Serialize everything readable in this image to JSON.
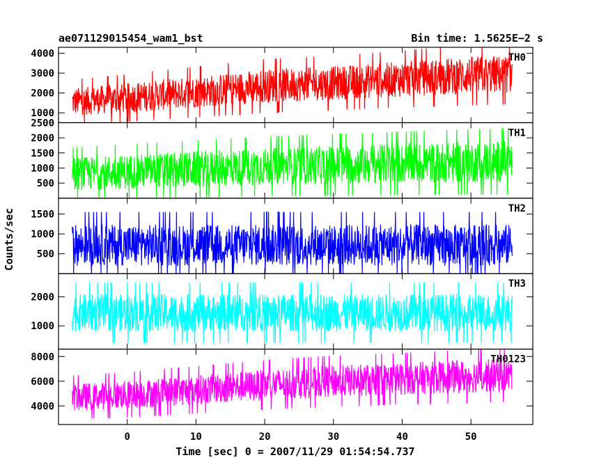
{
  "chart_data": {
    "type": "line",
    "title": "ae071129015454_wam1_bst",
    "subtitle": "Bin time: 1.5625E−2 s",
    "xlabel": "Time [sec] 0 = 2007/11/29 01:54:54.737",
    "ylabel": "Counts/sec",
    "xlim": [
      -10,
      59
    ],
    "x_ticks": [
      0,
      10,
      20,
      30,
      40,
      50
    ],
    "x_tick_labels": [
      "0",
      "10",
      "20",
      "30",
      "40",
      "50"
    ],
    "series_x_range": [
      -8,
      56
    ],
    "grid": false,
    "panels": [
      {
        "name": "TH0",
        "color": "#ff0000",
        "ylim": [
          500,
          4300
        ],
        "y_ticks": [
          1000,
          2000,
          3000,
          4000
        ],
        "y_tick_labels": [
          "1000",
          "2000",
          "3000",
          "4000"
        ],
        "trend_x": [
          -8,
          0,
          10,
          20,
          30,
          40,
          50,
          56
        ],
        "trend_mean": [
          1550,
          1750,
          2050,
          2350,
          2500,
          2700,
          2900,
          2950
        ],
        "trend_spread": [
          700,
          750,
          800,
          850,
          850,
          900,
          950,
          950
        ]
      },
      {
        "name": "TH1",
        "color": "#00ff00",
        "ylim": [
          0,
          2500
        ],
        "y_ticks": [
          500,
          1000,
          1500,
          2000,
          2500
        ],
        "y_tick_labels": [
          "500",
          "1000",
          "1500",
          "2000",
          "2500"
        ],
        "trend_x": [
          -8,
          0,
          10,
          20,
          30,
          40,
          50,
          56
        ],
        "trend_mean": [
          800,
          880,
          960,
          1050,
          1100,
          1150,
          1200,
          1220
        ],
        "trend_spread": [
          550,
          570,
          600,
          620,
          640,
          660,
          680,
          690
        ]
      },
      {
        "name": "TH2",
        "color": "#0000ff",
        "ylim": [
          0,
          1900
        ],
        "y_ticks": [
          500,
          1000,
          1500
        ],
        "y_tick_labels": [
          "500",
          "1000",
          "1500"
        ],
        "trend_x": [
          -8,
          0,
          10,
          20,
          30,
          40,
          50,
          56
        ],
        "trend_mean": [
          720,
          720,
          720,
          720,
          720,
          720,
          720,
          720
        ],
        "trend_spread": [
          520,
          520,
          520,
          520,
          520,
          520,
          520,
          520
        ]
      },
      {
        "name": "TH3",
        "color": "#00ffff",
        "ylim": [
          200,
          2800
        ],
        "y_ticks": [
          1000,
          2000
        ],
        "y_tick_labels": [
          "1000",
          "2000"
        ],
        "trend_x": [
          -8,
          0,
          10,
          20,
          30,
          40,
          50,
          56
        ],
        "trend_mean": [
          1450,
          1450,
          1450,
          1450,
          1450,
          1450,
          1450,
          1450
        ],
        "trend_spread": [
          650,
          650,
          650,
          650,
          650,
          650,
          650,
          650
        ]
      },
      {
        "name": "TH0123",
        "color": "#ff00ff",
        "ylim": [
          2500,
          8600
        ],
        "y_ticks": [
          4000,
          6000,
          8000
        ],
        "y_tick_labels": [
          "4000",
          "6000",
          "8000"
        ],
        "trend_x": [
          -8,
          0,
          10,
          20,
          30,
          40,
          50,
          56
        ],
        "trend_mean": [
          4700,
          4900,
          5300,
          5700,
          6000,
          6200,
          6400,
          6500
        ],
        "trend_spread": [
          1100,
          1150,
          1200,
          1250,
          1300,
          1300,
          1350,
          1350
        ]
      }
    ]
  }
}
